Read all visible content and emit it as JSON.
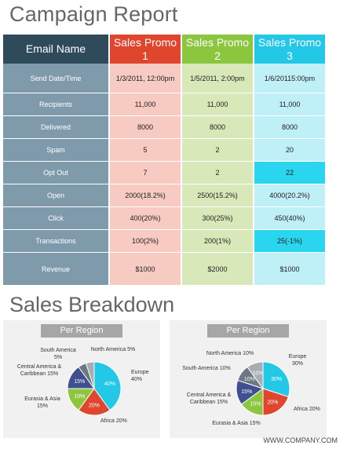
{
  "report": {
    "title": "Campaign Report",
    "headers": {
      "label": "Email Name",
      "p1": "Sales Promo 1",
      "p2": "Sales Promo 2",
      "p3": "Sales Promo 3"
    },
    "rows": [
      {
        "label": "Send Date/Time",
        "v1": "1/3/2011, 12:00pm",
        "v2": "1/5/2011, 2:00pm",
        "v3": "1/6/20115:00pm",
        "h": 38
      },
      {
        "label": "Recipients",
        "v1": "11,000",
        "v2": "11,000",
        "v3": "11,000",
        "h": 29
      },
      {
        "label": "Delivered",
        "v1": "8000",
        "v2": "8000",
        "v3": "8000",
        "h": 29
      },
      {
        "label": "Spam",
        "v1": "5",
        "v2": "2",
        "v3": "20",
        "h": 29
      },
      {
        "label": "Opt Out",
        "v1": "7",
        "v2": "2",
        "v3": "22",
        "h": 29,
        "highlight3": true
      },
      {
        "label": "Open",
        "v1": "2000(18.2%)",
        "v2": "2500(15.2%)",
        "v3": "4000(20.2%)",
        "h": 29
      },
      {
        "label": "Click",
        "v1": "400(20%)",
        "v2": "300(25%)",
        "v3": "450(40%)",
        "h": 29
      },
      {
        "label": "Transactions",
        "v1": "100(2%)",
        "v2": "200(1%)",
        "v3": "25(-1%)",
        "h": 29,
        "highlight3": true
      },
      {
        "label": "Revenue",
        "v1": "$1000",
        "v2": "$2000",
        "v3": "$1000",
        "h": 42
      }
    ]
  },
  "breakdown": {
    "title": "Sales Breakdown"
  },
  "chart_data": [
    {
      "type": "pie",
      "title": "Per Region",
      "slices": [
        {
          "name": "Europe",
          "value": 40,
          "label": "40%",
          "legend": "Europe 40%",
          "color": "#23c8e6"
        },
        {
          "name": "Africa",
          "value": 20,
          "label": "20%",
          "legend": "Africa 20%",
          "color": "#e0452d"
        },
        {
          "name": "Eurasia & Asia",
          "value": 15,
          "label": "15%",
          "legend": "Eurasia & Asia 15%",
          "color": "#8cc63f"
        },
        {
          "name": "Central America & Caribbean",
          "value": 15,
          "label": "15%",
          "legend": "Central America & Caribbean 15%",
          "color": "#3f4f8f"
        },
        {
          "name": "South America",
          "value": 5,
          "label": "",
          "legend": "South America 5%",
          "color": "#6f7880"
        },
        {
          "name": "North America",
          "value": 5,
          "label": "",
          "legend": "North America 5%",
          "color": "#a7aeb3"
        }
      ]
    },
    {
      "type": "pie",
      "title": "Per Region",
      "slices": [
        {
          "name": "Europe",
          "value": 30,
          "label": "30%",
          "legend": "Europe 30%",
          "color": "#23c8e6"
        },
        {
          "name": "Africa",
          "value": 20,
          "label": "20%",
          "legend": "Africa 20%",
          "color": "#e0452d"
        },
        {
          "name": "Eurasia & Asia",
          "value": 15,
          "label": "15%",
          "legend": "Eurasia & Asia 15%",
          "color": "#8cc63f"
        },
        {
          "name": "Central America & Caribbean",
          "value": 15,
          "label": "15%",
          "legend": "Central America & Caribbean 15%",
          "color": "#3f4f8f"
        },
        {
          "name": "South America",
          "value": 10,
          "label": "10%",
          "legend": "South America 10%",
          "color": "#6f7880"
        },
        {
          "name": "North America",
          "value": 10,
          "label": "10%",
          "legend": "North America 10%",
          "color": "#a7aeb3"
        }
      ]
    }
  ],
  "footer": "WWW.COMPANY.COM"
}
